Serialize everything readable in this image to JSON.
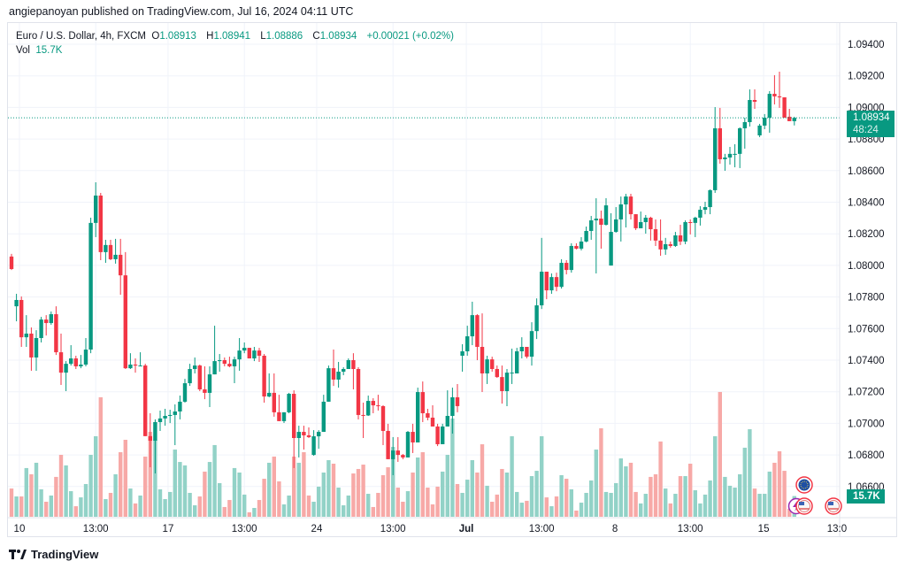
{
  "header": {
    "publisher_line": "angiepanoyan published on TradingView.com, Jul 16, 2024 04:11 UTC"
  },
  "legend": {
    "symbol": "Euro / U.S. Dollar, 4h, FXCM",
    "o_label": "O",
    "o": "1.08913",
    "h_label": "H",
    "h": "1.08941",
    "l_label": "L",
    "l": "1.08886",
    "c_label": "C",
    "c": "1.08934",
    "change": "+0.00021 (+0.02%)",
    "vol_label": "Vol",
    "vol": "15.7K"
  },
  "price_badge": {
    "price": "1.08934",
    "countdown": "48:24"
  },
  "volume_badge": {
    "value": "15.7K"
  },
  "footer": {
    "brand": "TradingView"
  },
  "colors": {
    "up": "#089981",
    "down": "#F23645",
    "up_vol": "#92d2c7",
    "down_vol": "#f7a9a7",
    "grid": "#f0f3fa"
  },
  "events": [
    {
      "icon": "eu-flag-icon"
    },
    {
      "icon": "lightning-icon"
    },
    {
      "icon": "us-flag-icon"
    },
    {
      "icon": "us-flag-icon"
    }
  ],
  "chart_data": {
    "type": "candlestick",
    "title": "Euro / U.S. Dollar, 4h, FXCM",
    "ylim": [
      1.0652,
      1.0952
    ],
    "y_ticks": [
      "1.09400",
      "1.09200",
      "1.09000",
      "1.08800",
      "1.08600",
      "1.08400",
      "1.08200",
      "1.08000",
      "1.07800",
      "1.07600",
      "1.07400",
      "1.07200",
      "1.07000",
      "1.06800",
      "1.06600"
    ],
    "x_ticks": [
      {
        "label": "10",
        "at": 1.6,
        "bold": false
      },
      {
        "label": "13:00",
        "at": 17,
        "bold": false
      },
      {
        "label": "17",
        "at": 31.6,
        "bold": false
      },
      {
        "label": "13:00",
        "at": 47,
        "bold": false
      },
      {
        "label": "24",
        "at": 61.6,
        "bold": false
      },
      {
        "label": "13:00",
        "at": 77,
        "bold": false
      },
      {
        "label": "Jul",
        "at": 91.8,
        "bold": true
      },
      {
        "label": "13:00",
        "at": 107,
        "bold": false
      },
      {
        "label": "8",
        "at": 121.8,
        "bold": false
      },
      {
        "label": "13:00",
        "at": 137,
        "bold": false
      },
      {
        "label": "15",
        "at": 151.8,
        "bold": false
      },
      {
        "label": "13:0",
        "at": 166.6,
        "bold": false
      }
    ],
    "last_price": 1.08934,
    "volume_unit": "K",
    "ohlc": [
      [
        1.08056,
        1.08073,
        1.07971,
        1.07977
      ],
      [
        1.07741,
        1.0782,
        1.07646,
        1.07781
      ],
      [
        1.07781,
        1.07803,
        1.07484,
        1.07545
      ],
      [
        1.07545,
        1.07685,
        1.07484,
        1.07568
      ],
      [
        1.07568,
        1.07607,
        1.07333,
        1.07417
      ],
      [
        1.07417,
        1.0759,
        1.07333,
        1.0754
      ],
      [
        1.0754,
        1.07674,
        1.07512,
        1.07657
      ],
      [
        1.07657,
        1.07685,
        1.07556,
        1.07635
      ],
      [
        1.07635,
        1.07708,
        1.07624,
        1.07691
      ],
      [
        1.07691,
        1.07741,
        1.07433,
        1.0745
      ],
      [
        1.0745,
        1.07568,
        1.07243,
        1.07321
      ],
      [
        1.07321,
        1.07394,
        1.07204,
        1.07377
      ],
      [
        1.07377,
        1.07495,
        1.07366,
        1.07411
      ],
      [
        1.07411,
        1.07428,
        1.07344,
        1.07361
      ],
      [
        1.07361,
        1.07433,
        1.07349,
        1.07372
      ],
      [
        1.07372,
        1.0754,
        1.07361,
        1.07467
      ],
      [
        1.07467,
        1.08302,
        1.07444,
        1.08269
      ],
      [
        1.08269,
        1.08526,
        1.08179,
        1.08442
      ],
      [
        1.08442,
        1.08459,
        1.08033,
        1.08084
      ],
      [
        1.08084,
        1.08162,
        1.08016,
        1.08129
      ],
      [
        1.08129,
        1.08162,
        1.08033,
        1.08039
      ],
      [
        1.08039,
        1.08168,
        1.08011,
        1.08067
      ],
      [
        1.08067,
        1.08168,
        1.07814,
        1.07937
      ],
      [
        1.07937,
        1.08084,
        1.07344,
        1.07349
      ],
      [
        1.07349,
        1.07444,
        1.07344,
        1.07372
      ],
      [
        1.07372,
        1.07411,
        1.07321,
        1.07366
      ],
      [
        1.07361,
        1.0745,
        1.07361,
        1.07366
      ],
      [
        1.07366,
        1.07377,
        1.06919,
        1.06919
      ],
      [
        1.06919,
        1.07064,
        1.06722,
        1.0689
      ],
      [
        1.0689,
        1.07025,
        1.06683,
        1.07008
      ],
      [
        1.07008,
        1.07081,
        1.06952,
        1.07031
      ],
      [
        1.07031,
        1.07092,
        1.06985,
        1.07047
      ],
      [
        1.07047,
        1.07086,
        1.07002,
        1.07053
      ],
      [
        1.07053,
        1.0712,
        1.06862,
        1.07075
      ],
      [
        1.07075,
        1.07176,
        1.07025,
        1.07137
      ],
      [
        1.07137,
        1.07282,
        1.07131,
        1.07254
      ],
      [
        1.07254,
        1.07377,
        1.07237,
        1.07344
      ],
      [
        1.07344,
        1.07417,
        1.07316,
        1.07366
      ],
      [
        1.07366,
        1.07372,
        1.07204,
        1.07215
      ],
      [
        1.07215,
        1.07361,
        1.07153,
        1.07193
      ],
      [
        1.07193,
        1.07361,
        1.07103,
        1.0731
      ],
      [
        1.0731,
        1.07618,
        1.0731,
        1.07394
      ],
      [
        1.07394,
        1.07439,
        1.07327,
        1.074
      ],
      [
        1.074,
        1.07417,
        1.07361,
        1.07377
      ],
      [
        1.07377,
        1.07422,
        1.07355,
        1.07361
      ],
      [
        1.07361,
        1.07422,
        1.07254,
        1.07405
      ],
      [
        1.07405,
        1.0754,
        1.07333,
        1.07461
      ],
      [
        1.07461,
        1.07512,
        1.07444,
        1.07478
      ],
      [
        1.07478,
        1.07478,
        1.07411,
        1.07411
      ],
      [
        1.07411,
        1.07484,
        1.07394,
        1.07461
      ],
      [
        1.07461,
        1.07478,
        1.07389,
        1.07428
      ],
      [
        1.07428,
        1.07439,
        1.07131,
        1.0717
      ],
      [
        1.0717,
        1.07316,
        1.07165,
        1.07193
      ],
      [
        1.07193,
        1.07316,
        1.07042,
        1.0707
      ],
      [
        1.0707,
        1.07181,
        1.07014,
        1.07014
      ],
      [
        1.07014,
        1.0707,
        1.07002,
        1.0707
      ],
      [
        1.0707,
        1.07193,
        1.07064,
        1.07187
      ],
      [
        1.07187,
        1.07209,
        1.06717,
        1.06907
      ],
      [
        1.06907,
        1.06985,
        1.06784,
        1.06946
      ],
      [
        1.06946,
        1.06985,
        1.06834,
        1.06924
      ],
      [
        1.06924,
        1.06974,
        1.06907,
        1.06913
      ],
      [
        1.068,
        1.06957,
        1.06795,
        1.06918
      ],
      [
        1.06918,
        1.06957,
        1.06839,
        1.06946
      ],
      [
        1.06946,
        1.07181,
        1.06946,
        1.07137
      ],
      [
        1.07137,
        1.07366,
        1.07137,
        1.07349
      ],
      [
        1.07349,
        1.07467,
        1.07237,
        1.07277
      ],
      [
        1.07277,
        1.07389,
        1.07226,
        1.07327
      ],
      [
        1.07327,
        1.07355,
        1.07305,
        1.07344
      ],
      [
        1.07344,
        1.07411,
        1.07344,
        1.074
      ],
      [
        1.074,
        1.07444,
        1.07215,
        1.07344
      ],
      [
        1.07344,
        1.07355,
        1.07025,
        1.07053
      ],
      [
        1.07053,
        1.07131,
        1.06907,
        1.0705
      ],
      [
        1.0705,
        1.07176,
        1.07047,
        1.07142
      ],
      [
        1.07142,
        1.07159,
        1.07064,
        1.07114
      ],
      [
        1.07114,
        1.07181,
        1.07081,
        1.07109
      ],
      [
        1.07109,
        1.07114,
        1.06862,
        1.06952
      ],
      [
        1.06952,
        1.06997,
        1.06773,
        1.06773
      ],
      [
        1.06773,
        1.06913,
        1.06672,
        1.06828
      ],
      [
        1.06828,
        1.06913,
        1.06756,
        1.068
      ],
      [
        1.068,
        1.06806,
        1.06773,
        1.06784
      ],
      [
        1.06784,
        1.06952,
        1.06784,
        1.06946
      ],
      [
        1.06946,
        1.06997,
        1.06812,
        1.06879
      ],
      [
        1.06879,
        1.07226,
        1.06879,
        1.07198
      ],
      [
        1.07198,
        1.07265,
        1.07008,
        1.07064
      ],
      [
        1.07064,
        1.07092,
        1.07019,
        1.07036
      ],
      [
        1.07036,
        1.07114,
        1.0698,
        1.0698
      ],
      [
        1.0698,
        1.06997,
        1.06856,
        1.06868
      ],
      [
        1.06868,
        1.06997,
        1.06868,
        1.0698
      ],
      [
        1.0698,
        1.07209,
        1.0698,
        1.07047
      ],
      [
        1.07047,
        1.07226,
        1.06935,
        1.07165
      ],
      [
        1.07165,
        1.07249,
        1.0707,
        1.07109
      ],
      [
        1.07428,
        1.07501,
        1.07327,
        1.07456
      ],
      [
        1.07456,
        1.07618,
        1.07428,
        1.07551
      ],
      [
        1.07551,
        1.0777,
        1.07495,
        1.07685
      ],
      [
        1.07685,
        1.07691,
        1.074,
        1.07484
      ],
      [
        1.07484,
        1.07696,
        1.07198,
        1.07316
      ],
      [
        1.07316,
        1.07428,
        1.07249,
        1.07405
      ],
      [
        1.07405,
        1.07422,
        1.07327,
        1.07344
      ],
      [
        1.07344,
        1.07366,
        1.07288,
        1.07293
      ],
      [
        1.07293,
        1.07366,
        1.07125,
        1.07204
      ],
      [
        1.07204,
        1.07344,
        1.07109,
        1.07321
      ],
      [
        1.07321,
        1.07473,
        1.07249,
        1.07321
      ],
      [
        1.07316,
        1.07478,
        1.07316,
        1.07456
      ],
      [
        1.07456,
        1.07545,
        1.07411,
        1.07484
      ],
      [
        1.07484,
        1.07484,
        1.07411,
        1.07422
      ],
      [
        1.07422,
        1.0764,
        1.07366,
        1.07584
      ],
      [
        1.07584,
        1.07791,
        1.07534,
        1.07747
      ],
      [
        1.07747,
        1.08174,
        1.07724,
        1.0796
      ],
      [
        1.0796,
        1.0796,
        1.07786,
        1.07842
      ],
      [
        1.07842,
        1.07949,
        1.0782,
        1.07926
      ],
      [
        1.07926,
        1.07954,
        1.07836,
        1.07864
      ],
      [
        1.07864,
        1.08039,
        1.07853,
        1.08016
      ],
      [
        1.08016,
        1.08033,
        1.07943,
        1.07971
      ],
      [
        1.07971,
        1.0814,
        1.07954,
        1.08123
      ],
      [
        1.08123,
        1.0814,
        1.08101,
        1.08106
      ],
      [
        1.08106,
        1.08179,
        1.08095,
        1.08151
      ],
      [
        1.08151,
        1.08246,
        1.08146,
        1.08218
      ],
      [
        1.08218,
        1.08313,
        1.08162,
        1.08285
      ],
      [
        1.08285,
        1.08425,
        1.07949,
        1.08296
      ],
      [
        1.08296,
        1.08347,
        1.08106,
        1.08257
      ],
      [
        1.08257,
        1.08425,
        1.08252,
        1.0838
      ],
      [
        1.07999,
        1.0833,
        1.07999,
        1.08212
      ],
      [
        1.08212,
        1.08369,
        1.08207,
        1.08291
      ],
      [
        1.08291,
        1.08436,
        1.08151,
        1.08386
      ],
      [
        1.08386,
        1.08453,
        1.0824,
        1.08436
      ],
      [
        1.08436,
        1.08453,
        1.08291,
        1.08324
      ],
      [
        1.08324,
        1.08324,
        1.08224,
        1.08235
      ],
      [
        1.08235,
        1.08341,
        1.08235,
        1.08274
      ],
      [
        1.08274,
        1.08319,
        1.08201,
        1.08302
      ],
      [
        1.08302,
        1.08308,
        1.08157,
        1.08229
      ],
      [
        1.08229,
        1.08291,
        1.08123,
        1.08157
      ],
      [
        1.08157,
        1.08291,
        1.08061,
        1.08101
      ],
      [
        1.08101,
        1.08174,
        1.08067,
        1.08134
      ],
      [
        1.08134,
        1.08151,
        1.08112,
        1.08123
      ],
      [
        1.08123,
        1.08212,
        1.08117,
        1.0819
      ],
      [
        1.0819,
        1.08257,
        1.08129,
        1.08151
      ],
      [
        1.08151,
        1.08285,
        1.08134,
        1.08274
      ],
      [
        1.08274,
        1.08291,
        1.08196,
        1.08269
      ],
      [
        1.08269,
        1.08308,
        1.08179,
        1.08302
      ],
      [
        1.08302,
        1.08375,
        1.08252,
        1.08352
      ],
      [
        1.08352,
        1.08403,
        1.08324,
        1.08369
      ],
      [
        1.08369,
        1.08481,
        1.08324,
        1.08476
      ],
      [
        1.08476,
        1.09002,
        1.08459,
        1.08868
      ],
      [
        1.08868,
        1.08997,
        1.08644,
        1.08672
      ],
      [
        1.08672,
        1.08706,
        1.08599,
        1.08683
      ],
      [
        1.08683,
        1.0875,
        1.08638,
        1.08706
      ],
      [
        1.087,
        1.08767,
        1.08621,
        1.08706
      ],
      [
        1.08706,
        1.08874,
        1.08616,
        1.08868
      ],
      [
        1.08868,
        1.08935,
        1.08739,
        1.08907
      ],
      [
        1.08907,
        1.09114,
        1.08879,
        1.09047
      ],
      [
        1.09047,
        1.09114,
        1.08991,
        1.09036
      ],
      [
        1.08823,
        1.08896,
        1.08812,
        1.08885
      ],
      [
        1.08885,
        1.08958,
        1.08862,
        1.08935
      ],
      [
        1.08935,
        1.09103,
        1.0884,
        1.09086
      ],
      [
        1.09086,
        1.09204,
        1.09019,
        1.0907
      ],
      [
        1.0907,
        1.09226,
        1.08997,
        1.09064
      ],
      [
        1.09064,
        1.09064,
        1.08935,
        1.08935
      ],
      [
        1.08941,
        1.08991,
        1.08913,
        1.08913
      ],
      [
        1.08913,
        1.08941,
        1.08886,
        1.08934
      ]
    ],
    "volume": [
      21.4,
      15.4,
      15.4,
      36.9,
      32.2,
      40.9,
      20.8,
      11.4,
      16.1,
      30.2,
      46.9,
      38.9,
      19.4,
      8.0,
      14.7,
      24.8,
      46.9,
      61.0,
      90.5,
      13.4,
      18.1,
      32.2,
      48.9,
      58.3,
      21.4,
      10.1,
      16.1,
      45.6,
      64.3,
      58.3,
      20.8,
      13.4,
      18.8,
      50.9,
      41.5,
      38.9,
      18.1,
      8.7,
      15.4,
      34.2,
      41.5,
      54.3,
      25.5,
      7.4,
      12.7,
      36.9,
      33.5,
      16.8,
      3.4,
      6.7,
      12.7,
      28.8,
      40.9,
      45.6,
      26.8,
      9.4,
      16.1,
      45.6,
      40.9,
      48.9,
      16.1,
      11.4,
      22.8,
      33.5,
      42.9,
      40.2,
      22.1,
      8.7,
      16.1,
      32.8,
      36.2,
      39.5,
      17.4,
      7.4,
      18.1,
      31.5,
      37.5,
      52.9,
      22.1,
      11.4,
      19.4,
      33.5,
      44.9,
      48.9,
      22.1,
      9.4,
      22.8,
      34.2,
      46.9,
      74.4,
      24.8,
      18.1,
      28.1,
      42.9,
      33.5,
      54.9,
      23.5,
      11.4,
      16.8,
      36.2,
      33.5,
      61.0,
      18.8,
      10.7,
      12.1,
      30.8,
      34.8,
      61.0,
      14.7,
      8.0,
      15.4,
      31.5,
      28.8,
      20.8,
      4.7,
      10.7,
      18.1,
      27.5,
      50.9,
      67.0,
      18.8,
      18.1,
      25.5,
      44.2,
      38.2,
      40.9,
      18.8,
      10.1,
      17.4,
      30.2,
      32.2,
      57.0,
      21.4,
      10.1,
      17.4,
      30.8,
      30.8,
      40.2,
      20.1,
      10.1,
      16.8,
      27.5,
      61.0,
      94.5,
      30.2,
      23.5,
      22.1,
      32.2,
      52.3,
      66.3,
      21.4,
      17.4,
      17.4,
      34.2,
      40.9,
      49.6,
      34.8,
      6.0,
      15.7
    ]
  }
}
